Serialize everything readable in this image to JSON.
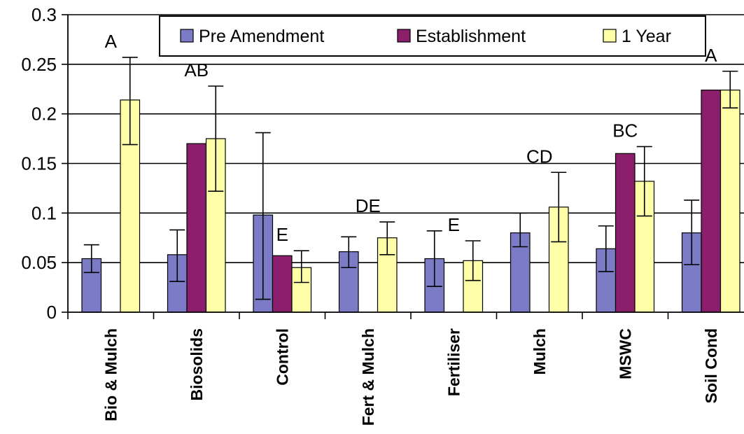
{
  "chart_data": {
    "type": "bar",
    "categories": [
      "Bio & Mulch",
      "Biosolids",
      "Control",
      "Fert & Mulch",
      "Fertiliser",
      "Mulch",
      "MSWC",
      "Soil Cond"
    ],
    "series": [
      {
        "name": "Pre Amendment",
        "color": "#7b7bc6",
        "values": [
          0.054,
          0.058,
          0.098,
          0.061,
          0.054,
          0.08,
          0.064,
          0.08
        ],
        "err_low": [
          0.04,
          0.031,
          0.013,
          0.045,
          0.026,
          0.066,
          0.041,
          0.048
        ],
        "err_high": [
          0.068,
          0.083,
          0.181,
          0.076,
          0.082,
          0.1,
          0.087,
          0.113
        ]
      },
      {
        "name": "Establishment",
        "color": "#8b1f6b",
        "values": [
          null,
          0.17,
          0.057,
          null,
          null,
          null,
          0.16,
          0.224
        ],
        "err_low": [
          null,
          null,
          null,
          null,
          null,
          null,
          null,
          null
        ],
        "err_high": [
          null,
          null,
          null,
          null,
          null,
          null,
          null,
          null
        ]
      },
      {
        "name": "1 Year",
        "color": "#ffffa8",
        "values": [
          0.214,
          0.175,
          0.045,
          0.075,
          0.052,
          0.106,
          0.132,
          0.224
        ],
        "err_low": [
          0.169,
          0.122,
          0.03,
          0.058,
          0.032,
          0.071,
          0.097,
          0.206
        ],
        "err_high": [
          0.257,
          0.228,
          0.062,
          0.091,
          0.072,
          0.141,
          0.167,
          0.243
        ]
      }
    ],
    "annotations": [
      "A",
      "AB",
      "E",
      "DE",
      "E",
      "CD",
      "BC",
      "A"
    ],
    "yticks": [
      "0",
      "0.05",
      "0.1",
      "0.15",
      "0.2",
      "0.25",
      "0.3"
    ],
    "ylim": [
      0,
      0.3
    ],
    "grid": true,
    "legend_position": "top"
  }
}
